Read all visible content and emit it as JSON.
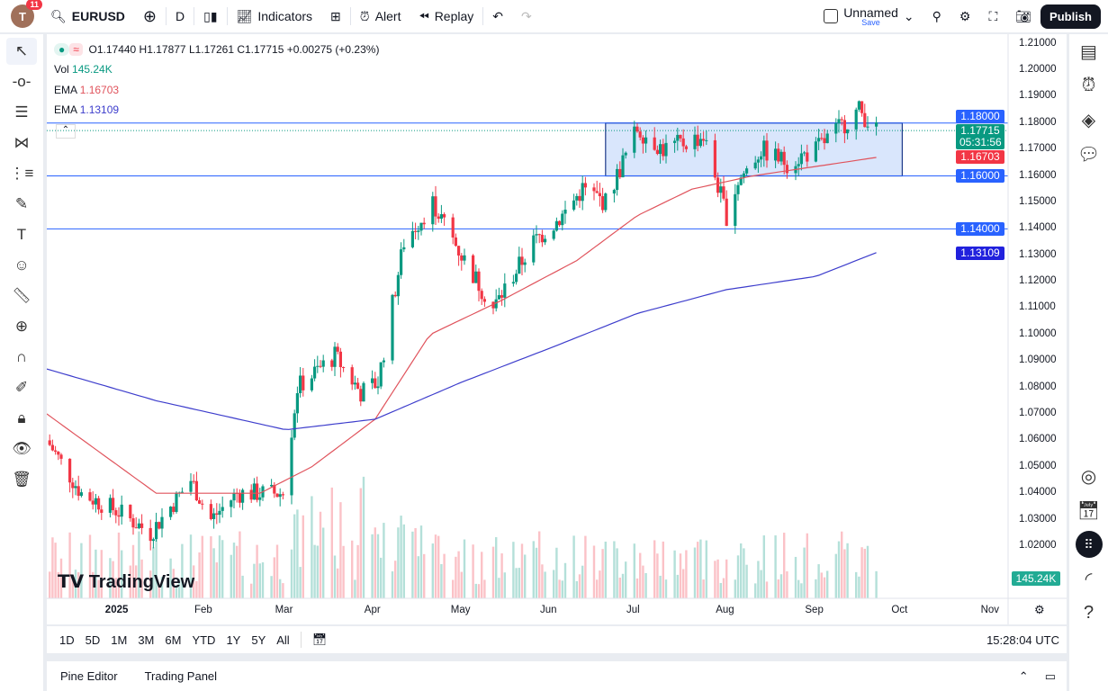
{
  "topbar": {
    "avatar_letter": "T",
    "notifications": "11",
    "symbol": "EURUSD",
    "interval": "D",
    "indicators": "Indicators",
    "alert": "Alert",
    "replay": "Replay",
    "layout_name": "Unnamed",
    "save": "Save",
    "publish": "Publish"
  },
  "legend": {
    "ohlc": "O1.17440 H1.17877 L1.17261 C1.17715 +0.00275 (+0.23%)",
    "vol_label": "Vol",
    "vol_value": "145.24K",
    "ema1_label": "EMA",
    "ema1_value": "1.16703",
    "ema2_label": "EMA",
    "ema2_value": "1.13109"
  },
  "price_axis": {
    "ticks": [
      "1.21000",
      "1.20000",
      "1.19000",
      "1.18000",
      "1.17000",
      "1.16000",
      "1.15000",
      "1.14000",
      "1.13000",
      "1.12000",
      "1.11000",
      "1.10000",
      "1.09000",
      "1.08000",
      "1.07000",
      "1.06000",
      "1.05000",
      "1.04000",
      "1.03000",
      "1.02000"
    ],
    "labels": {
      "line_1180": "1.18000",
      "last_price": "1.17715",
      "countdown": "05:31:56",
      "ema50": "1.16703",
      "line_1160": "1.16000",
      "line_1140": "1.14000",
      "ema200": "1.13109",
      "volume": "145.24K"
    }
  },
  "time_axis": {
    "labels": [
      "2025",
      "Feb",
      "Mar",
      "Apr",
      "May",
      "Jun",
      "Jul",
      "Aug",
      "Sep",
      "Oct",
      "Nov"
    ]
  },
  "colors": {
    "up": "#089981",
    "down": "#f23645",
    "ema50": "#e0535c",
    "ema200": "#3d3dcc",
    "hline": "#2962ff",
    "box_fill": "#cfe0fb"
  },
  "price_path": [
    [
      "2024-12-08",
      1.06
    ],
    [
      "2024-12-20",
      1.04
    ],
    [
      "2025-01-02",
      1.033
    ],
    [
      "2025-01-13",
      1.025
    ],
    [
      "2025-01-27",
      1.045
    ],
    [
      "2025-02-03",
      1.03
    ],
    [
      "2025-02-12",
      1.04
    ],
    [
      "2025-02-28",
      1.04
    ],
    [
      "2025-03-05",
      1.08
    ],
    [
      "2025-03-18",
      1.092
    ],
    [
      "2025-03-27",
      1.078
    ],
    [
      "2025-04-02",
      1.082
    ],
    [
      "2025-04-11",
      1.135
    ],
    [
      "2025-04-21",
      1.15
    ],
    [
      "2025-05-01",
      1.13
    ],
    [
      "2025-05-12",
      1.11
    ],
    [
      "2025-05-26",
      1.135
    ],
    [
      "2025-06-05",
      1.145
    ],
    [
      "2025-06-12",
      1.155
    ],
    [
      "2025-06-20",
      1.15
    ],
    [
      "2025-07-01",
      1.178
    ],
    [
      "2025-07-10",
      1.17
    ],
    [
      "2025-07-24",
      1.175
    ],
    [
      "2025-08-01",
      1.145
    ],
    [
      "2025-08-05",
      1.158
    ],
    [
      "2025-08-13",
      1.17
    ],
    [
      "2025-08-22",
      1.165
    ],
    [
      "2025-09-01",
      1.17
    ],
    [
      "2025-09-16",
      1.185
    ],
    [
      "2025-09-22",
      1.177
    ]
  ],
  "ema50_path": [
    [
      "2024-12-08",
      1.07
    ],
    [
      "2025-01-15",
      1.04
    ],
    [
      "2025-02-20",
      1.04
    ],
    [
      "2025-03-10",
      1.05
    ],
    [
      "2025-04-01",
      1.068
    ],
    [
      "2025-04-20",
      1.1
    ],
    [
      "2025-05-15",
      1.113
    ],
    [
      "2025-06-10",
      1.128
    ],
    [
      "2025-07-01",
      1.145
    ],
    [
      "2025-07-20",
      1.155
    ],
    [
      "2025-08-10",
      1.16
    ],
    [
      "2025-09-22",
      1.167
    ]
  ],
  "ema200_path": [
    [
      "2024-12-08",
      1.087
    ],
    [
      "2025-01-15",
      1.075
    ],
    [
      "2025-03-01",
      1.064
    ],
    [
      "2025-04-01",
      1.068
    ],
    [
      "2025-05-01",
      1.082
    ],
    [
      "2025-06-01",
      1.095
    ],
    [
      "2025-07-01",
      1.108
    ],
    [
      "2025-08-01",
      1.117
    ],
    [
      "2025-09-01",
      1.122
    ],
    [
      "2025-09-22",
      1.131
    ]
  ],
  "horizontal_lines": [
    1.18,
    1.16,
    1.14
  ],
  "rectangle": {
    "from": "2025-06-20",
    "to": "2025-10-01",
    "top": 1.18,
    "bottom": 1.16
  },
  "watermark": "TradingView",
  "range_buttons": [
    "1D",
    "5D",
    "1M",
    "3M",
    "6M",
    "YTD",
    "1Y",
    "5Y",
    "All"
  ],
  "clock": "15:28:04 UTC",
  "bottom_panel": {
    "pine_editor": "Pine Editor",
    "trading_panel": "Trading Panel"
  }
}
